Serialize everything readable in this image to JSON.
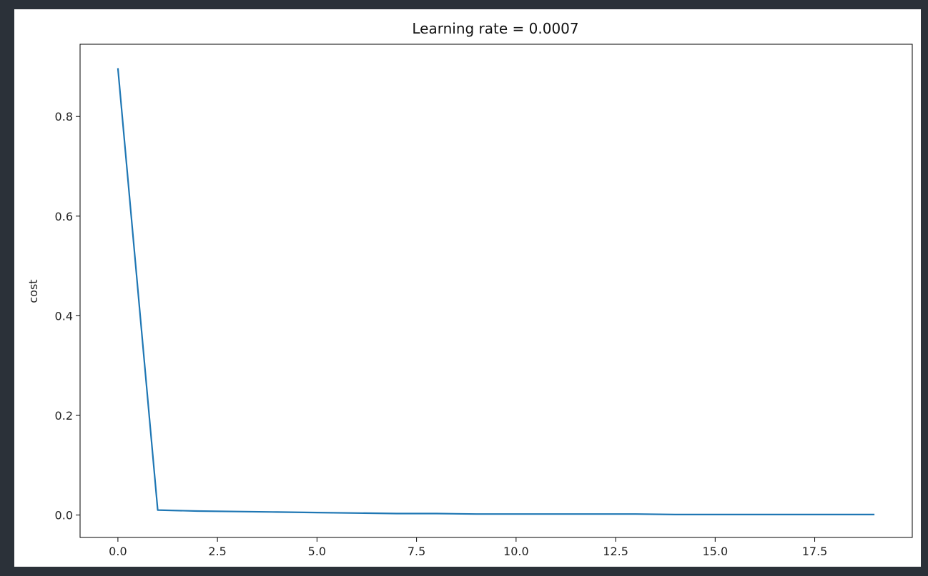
{
  "chart_data": {
    "type": "line",
    "title": "Learning rate = 0.0007",
    "xlabel": "",
    "ylabel": "cost",
    "xlim": [
      -0.95,
      19.95
    ],
    "ylim": [
      -0.045,
      0.945
    ],
    "xticks": [
      0.0,
      2.5,
      5.0,
      7.5,
      10.0,
      12.5,
      15.0,
      17.5
    ],
    "xtick_labels": [
      "0.0",
      "2.5",
      "5.0",
      "7.5",
      "10.0",
      "12.5",
      "15.0",
      "17.5"
    ],
    "yticks": [
      0.0,
      0.2,
      0.4,
      0.6,
      0.8
    ],
    "ytick_labels": [
      "0.0",
      "0.2",
      "0.4",
      "0.6",
      "0.8"
    ],
    "grid": false,
    "series": [
      {
        "color": "#1f77b4",
        "x": [
          0,
          1,
          2,
          3,
          4,
          5,
          6,
          7,
          8,
          9,
          10,
          11,
          12,
          13,
          14,
          15,
          16,
          17,
          18,
          19
        ],
        "y": [
          0.897,
          0.01,
          0.008,
          0.007,
          0.006,
          0.005,
          0.004,
          0.003,
          0.003,
          0.002,
          0.002,
          0.002,
          0.002,
          0.002,
          0.001,
          0.001,
          0.001,
          0.001,
          0.001,
          0.001
        ]
      }
    ]
  }
}
